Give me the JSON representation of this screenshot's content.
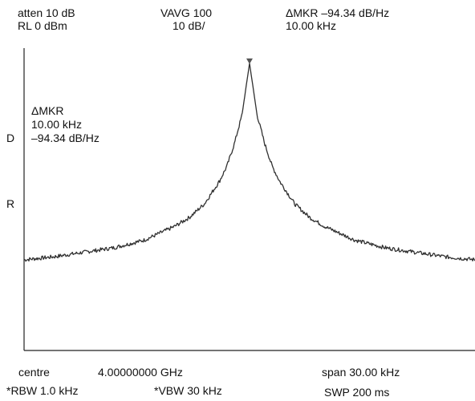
{
  "header": {
    "atten": "atten 10 dB",
    "rl": "RL 0 dBm",
    "vavg": "VAVG 100",
    "scale": "10 dB/",
    "mkr_top": "ΔMKR –94.34 dB/Hz",
    "mkr_freq": "10.00 kHz"
  },
  "marker_box": {
    "title": "ΔMKR",
    "freq": "10.00 kHz",
    "level": "–94.34 dB/Hz"
  },
  "side_labels": {
    "d": "D",
    "r": "R"
  },
  "footer": {
    "centre_label": "centre",
    "centre_value": "4.00000000 GHz",
    "span": "span 30.00 kHz",
    "rbw": "*RBW 1.0 kHz",
    "vbw": "*VBW 30 kHz",
    "swp": "SWP 200 ms"
  },
  "chart_data": {
    "type": "line",
    "title": "",
    "xlabel": "",
    "ylabel": "",
    "center_frequency": "4.00000000 GHz",
    "span": "30.00 kHz",
    "reference_level": "0 dBm",
    "scale_per_div": "10 dB/",
    "x_unit": "kHz offset from centre",
    "y_unit": "dB relative to reference",
    "xlim": [
      -15,
      15
    ],
    "ylim": [
      -100,
      0
    ],
    "grid": false,
    "marker": {
      "x": 0,
      "y": -5,
      "delta_frequency": "10.00 kHz",
      "delta_level": "–94.34 dB/Hz"
    },
    "series": [
      {
        "x": [
          -15,
          -13,
          -11,
          -9,
          -7,
          -5,
          -4,
          -3,
          -2,
          -1.5,
          -1,
          -0.5,
          0,
          0.5,
          1,
          1.5,
          2,
          3,
          4,
          5,
          7,
          9,
          11,
          13,
          15
        ],
        "values": [
          -70,
          -69,
          -67.5,
          -66,
          -63.5,
          -59,
          -56,
          -51.5,
          -44,
          -39,
          -31.5,
          -22,
          -5,
          -22,
          -31.5,
          -39,
          -44,
          -51.5,
          -56,
          -59,
          -63.5,
          -66,
          -67.5,
          -69,
          -70
        ]
      }
    ]
  }
}
